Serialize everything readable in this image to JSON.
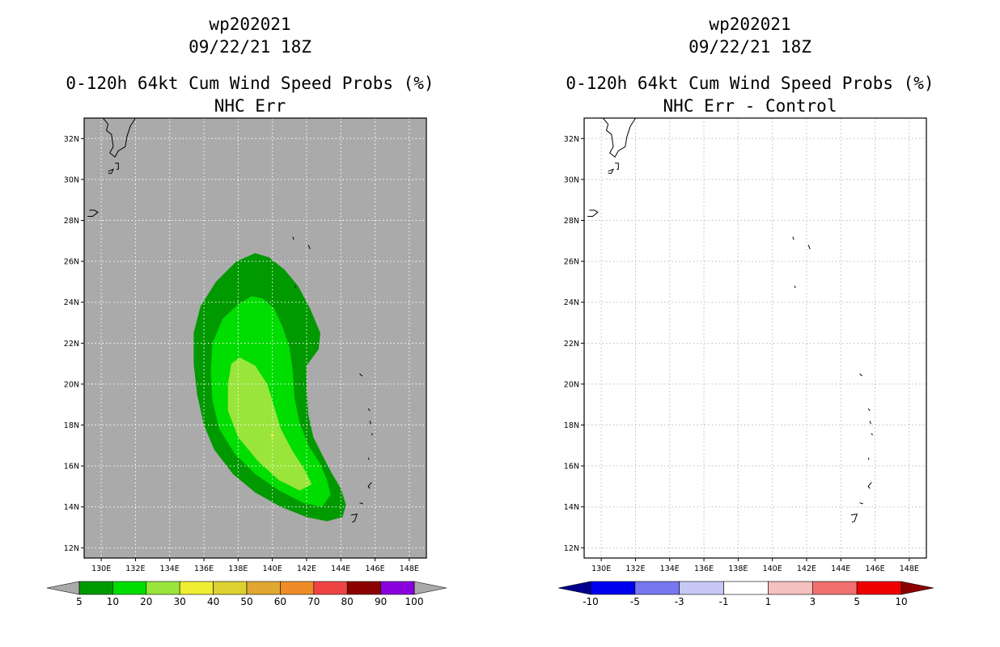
{
  "left_panel": {
    "title_lines": [
      "wp202021",
      "09/22/21 18Z",
      "0-120h 64kt Cum Wind Speed Probs (%)",
      "NHC Err"
    ],
    "background_color": "#aaaaaa"
  },
  "right_panel": {
    "title_lines": [
      "wp202021",
      "09/22/21 18Z",
      "0-120h 64kt Cum Wind Speed Probs (%)",
      "NHC Err - Control"
    ],
    "background_color": "#ffffff"
  },
  "chart_data": [
    {
      "type": "heatmap",
      "title": "0-120h 64kt Cum Wind Speed Probs (%)",
      "subtitle": "NHC Err",
      "storm": "wp202021",
      "time": "09/22/21 18Z",
      "xlim": [
        129,
        149
      ],
      "ylim": [
        11.5,
        33
      ],
      "x_ticks": [
        130,
        132,
        134,
        136,
        138,
        140,
        142,
        144,
        146,
        148
      ],
      "x_tick_labels": [
        "130E",
        "132E",
        "134E",
        "136E",
        "138E",
        "140E",
        "142E",
        "144E",
        "146E",
        "148E"
      ],
      "y_ticks": [
        12,
        14,
        16,
        18,
        20,
        22,
        24,
        26,
        28,
        30,
        32
      ],
      "y_tick_labels": [
        "12N",
        "14N",
        "16N",
        "18N",
        "20N",
        "22N",
        "24N",
        "26N",
        "28N",
        "30N",
        "32N"
      ],
      "grid": true,
      "colorbar": {
        "boundaries": [
          "5",
          "10",
          "20",
          "30",
          "40",
          "50",
          "60",
          "70",
          "80",
          "90",
          "100"
        ],
        "colors": [
          "#009900",
          "#00dd00",
          "#99e53b",
          "#eeee33",
          "#dcd130",
          "#e0a830",
          "#f08c28",
          "#ee4444",
          "#8c0000",
          "#8800dd"
        ],
        "extend_colors": [
          "#aaaaaa",
          "#aaaaaa"
        ]
      },
      "contours": [
        {
          "level": "5-10",
          "color": "#009900",
          "polygon_lonlat": [
            [
              139.0,
              26.4
            ],
            [
              139.8,
              26.2
            ],
            [
              140.7,
              25.6
            ],
            [
              141.5,
              24.8
            ],
            [
              142.2,
              23.7
            ],
            [
              142.8,
              22.5
            ],
            [
              142.7,
              21.7
            ],
            [
              142.0,
              20.9
            ],
            [
              142.0,
              19.8
            ],
            [
              142.1,
              18.5
            ],
            [
              142.4,
              17.4
            ],
            [
              143.0,
              16.4
            ],
            [
              143.5,
              15.6
            ],
            [
              144.0,
              14.9
            ],
            [
              144.3,
              14.1
            ],
            [
              144.1,
              13.5
            ],
            [
              143.2,
              13.3
            ],
            [
              142.0,
              13.5
            ],
            [
              140.5,
              14.0
            ],
            [
              139.0,
              14.7
            ],
            [
              137.7,
              15.6
            ],
            [
              136.6,
              16.8
            ],
            [
              136.0,
              18.0
            ],
            [
              135.6,
              19.5
            ],
            [
              135.4,
              21.0
            ],
            [
              135.4,
              22.5
            ],
            [
              135.8,
              23.8
            ],
            [
              136.7,
              25.0
            ],
            [
              137.9,
              26.0
            ]
          ]
        },
        {
          "level": "10-20",
          "color": "#00dd00",
          "polygon_lonlat": [
            [
              139.4,
              24.2
            ],
            [
              140.1,
              23.7
            ],
            [
              140.6,
              22.8
            ],
            [
              141.0,
              21.8
            ],
            [
              141.2,
              20.6
            ],
            [
              141.3,
              19.3
            ],
            [
              141.6,
              18.1
            ],
            [
              142.1,
              17.0
            ],
            [
              142.8,
              16.1
            ],
            [
              143.2,
              15.3
            ],
            [
              143.4,
              14.6
            ],
            [
              142.9,
              14.0
            ],
            [
              141.8,
              14.2
            ],
            [
              140.4,
              14.8
            ],
            [
              139.0,
              15.6
            ],
            [
              137.8,
              16.6
            ],
            [
              136.9,
              17.8
            ],
            [
              136.5,
              19.2
            ],
            [
              136.4,
              20.6
            ],
            [
              136.5,
              22.0
            ],
            [
              137.1,
              23.2
            ],
            [
              138.0,
              23.9
            ],
            [
              138.8,
              24.3
            ]
          ]
        },
        {
          "level": "20-30",
          "color": "#99e53b",
          "polygon_lonlat": [
            [
              138.1,
              21.3
            ],
            [
              139.0,
              20.9
            ],
            [
              139.7,
              20.0
            ],
            [
              140.1,
              18.9
            ],
            [
              140.5,
              17.8
            ],
            [
              141.2,
              16.7
            ],
            [
              141.9,
              15.8
            ],
            [
              142.3,
              15.1
            ],
            [
              141.6,
              14.8
            ],
            [
              140.4,
              15.3
            ],
            [
              139.2,
              16.2
            ],
            [
              138.0,
              17.4
            ],
            [
              137.4,
              18.7
            ],
            [
              137.4,
              20.0
            ],
            [
              137.6,
              21.0
            ]
          ]
        },
        {
          "level": "30-40",
          "color": "#eeee33",
          "polygon_lonlat": [
            [
              140.0,
              17.6
            ],
            [
              140.1,
              17.5
            ],
            [
              140.0,
              17.4
            ],
            [
              139.9,
              17.5
            ]
          ]
        }
      ]
    },
    {
      "type": "heatmap",
      "title": "0-120h 64kt Cum Wind Speed Probs (%)",
      "subtitle": "NHC Err - Control",
      "storm": "wp202021",
      "time": "09/22/21 18Z",
      "xlim": [
        129,
        149
      ],
      "ylim": [
        11.5,
        33
      ],
      "x_ticks": [
        130,
        132,
        134,
        136,
        138,
        140,
        142,
        144,
        146,
        148
      ],
      "x_tick_labels": [
        "130E",
        "132E",
        "134E",
        "136E",
        "138E",
        "140E",
        "142E",
        "144E",
        "146E",
        "148E"
      ],
      "y_ticks": [
        12,
        14,
        16,
        18,
        20,
        22,
        24,
        26,
        28,
        30,
        32
      ],
      "y_tick_labels": [
        "12N",
        "14N",
        "16N",
        "18N",
        "20N",
        "22N",
        "24N",
        "26N",
        "28N",
        "30N",
        "32N"
      ],
      "grid": true,
      "values": "all differences within -1 to 1 (no shading)",
      "colorbar": {
        "boundaries": [
          "-10",
          "-5",
          "-3",
          "-1",
          "1",
          "3",
          "5",
          "10"
        ],
        "colors": [
          "#0000ee",
          "#7777ee",
          "#c8c8f5",
          "#ffffff",
          "#f5c0c0",
          "#f07070",
          "#ee0000"
        ],
        "extend_colors": [
          "#00008c",
          "#8c0000"
        ]
      },
      "contours": []
    }
  ],
  "coastlines": [
    {
      "name": "kyushu",
      "lonlat": [
        [
          130.1,
          33.0
        ],
        [
          130.4,
          32.7
        ],
        [
          130.3,
          32.4
        ],
        [
          130.6,
          32.2
        ],
        [
          130.7,
          31.6
        ],
        [
          130.5,
          31.3
        ],
        [
          130.8,
          31.1
        ],
        [
          131.0,
          31.4
        ],
        [
          131.4,
          31.6
        ],
        [
          131.5,
          32.1
        ],
        [
          131.7,
          32.6
        ],
        [
          132.0,
          33.0
        ]
      ]
    },
    {
      "name": "island-a",
      "lonlat": [
        [
          130.4,
          30.4
        ],
        [
          130.7,
          30.5
        ],
        [
          130.6,
          30.3
        ],
        [
          130.4,
          30.3
        ]
      ]
    },
    {
      "name": "island-b",
      "lonlat": [
        [
          130.8,
          30.8
        ],
        [
          131.0,
          30.8
        ],
        [
          131.0,
          30.5
        ],
        [
          130.9,
          30.5
        ]
      ]
    },
    {
      "name": "island-c",
      "lonlat": [
        [
          129.3,
          28.5
        ],
        [
          129.6,
          28.5
        ],
        [
          129.8,
          28.4
        ],
        [
          129.5,
          28.2
        ],
        [
          129.2,
          28.2
        ]
      ]
    },
    {
      "name": "islet-1",
      "lonlat": [
        [
          141.2,
          27.2
        ],
        [
          141.25,
          27.05
        ]
      ]
    },
    {
      "name": "islet-2",
      "lonlat": [
        [
          142.1,
          26.8
        ],
        [
          142.2,
          26.6
        ]
      ]
    },
    {
      "name": "islet-3",
      "lonlat": [
        [
          141.3,
          24.8
        ],
        [
          141.35,
          24.7
        ]
      ]
    },
    {
      "name": "islet-4",
      "lonlat": [
        [
          145.1,
          20.5
        ],
        [
          145.25,
          20.4
        ]
      ]
    },
    {
      "name": "islet-5",
      "lonlat": [
        [
          145.6,
          18.8
        ],
        [
          145.7,
          18.7
        ]
      ]
    },
    {
      "name": "islet-6",
      "lonlat": [
        [
          145.7,
          18.2
        ],
        [
          145.75,
          18.05
        ]
      ]
    },
    {
      "name": "islet-7",
      "lonlat": [
        [
          145.8,
          17.6
        ],
        [
          145.85,
          17.5
        ]
      ]
    },
    {
      "name": "islet-8",
      "lonlat": [
        [
          145.6,
          16.4
        ],
        [
          145.65,
          16.3
        ]
      ]
    },
    {
      "name": "islet-9",
      "lonlat": [
        [
          145.8,
          15.2
        ],
        [
          145.6,
          15.0
        ],
        [
          145.7,
          14.9
        ]
      ]
    },
    {
      "name": "islet-10",
      "lonlat": [
        [
          145.1,
          14.2
        ],
        [
          145.3,
          14.15
        ]
      ]
    },
    {
      "name": "guam",
      "lonlat": [
        [
          144.6,
          13.6
        ],
        [
          144.95,
          13.65
        ],
        [
          144.8,
          13.3
        ],
        [
          144.65,
          13.25
        ]
      ]
    }
  ]
}
